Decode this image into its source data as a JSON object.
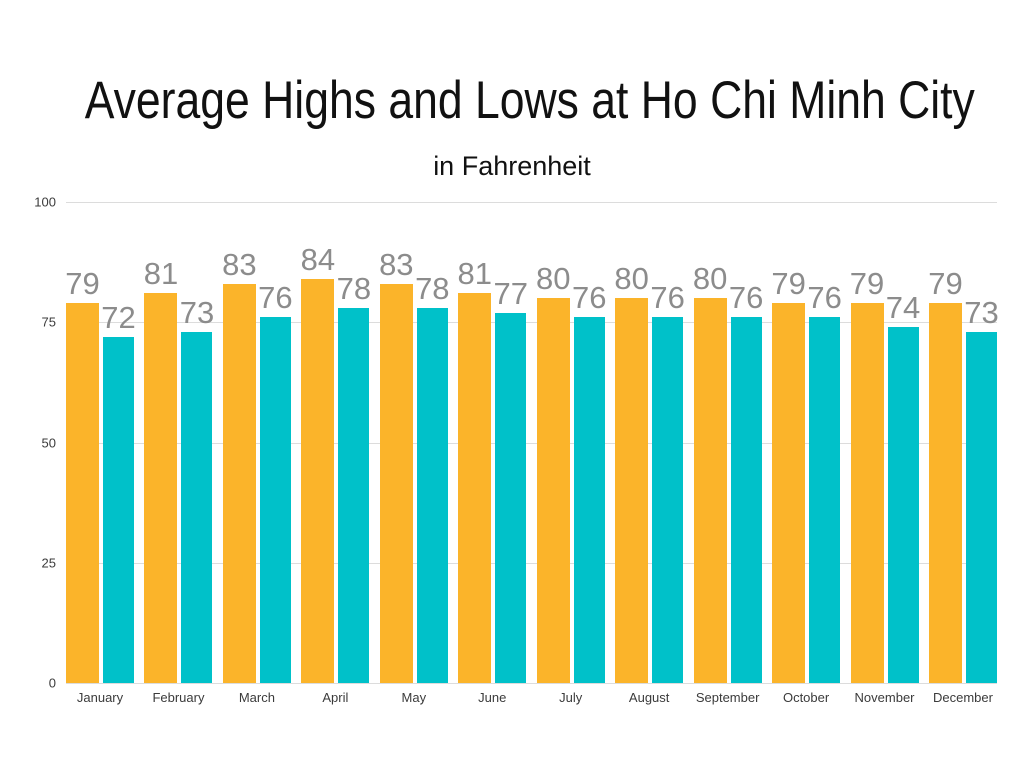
{
  "header": {
    "title": "Average Highs and Lows at Ho Chi Minh City",
    "subtitle": "in Fahrenheit"
  },
  "chart_data": {
    "type": "bar",
    "title": "Average Highs and Lows at Ho Chi Minh City",
    "subtitle": "in Fahrenheit",
    "categories": [
      "January",
      "February",
      "March",
      "April",
      "May",
      "June",
      "July",
      "August",
      "September",
      "October",
      "November",
      "December"
    ],
    "series": [
      {
        "name": "high",
        "color": "#FBB42A",
        "values": [
          79,
          81,
          83,
          84,
          83,
          81,
          80,
          80,
          80,
          79,
          79,
          79
        ]
      },
      {
        "name": "low",
        "color": "#00C1C9",
        "values": [
          72,
          73,
          76,
          78,
          78,
          77,
          76,
          76,
          76,
          76,
          74,
          73
        ]
      }
    ],
    "ylim": [
      0,
      100
    ],
    "yticks": [
      0,
      25,
      50,
      75,
      100
    ],
    "grid": true,
    "legend": "none",
    "value_labels": true,
    "colors": {
      "background": "#FFFFFF",
      "value_label": "#8C8C8C",
      "axis_text": "#3B3B3B",
      "gridline": "#DCDCDC",
      "title_text": "#111111"
    }
  }
}
